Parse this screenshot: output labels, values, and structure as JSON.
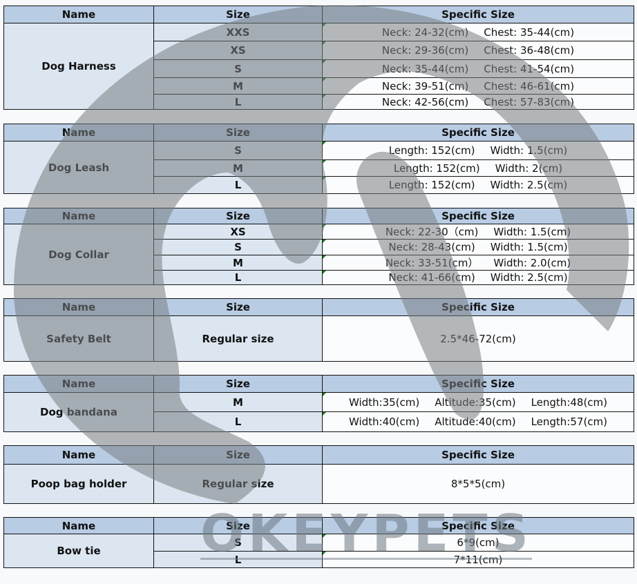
{
  "headers": {
    "name": "Name",
    "size": "Size",
    "specific": "Specific Size"
  },
  "watermark": {
    "logo_text": "OKEYPETS",
    "color": "#808080"
  },
  "colors": {
    "header_fill": "#b8cce4",
    "label_fill": "#dce6f1",
    "border": "#111111"
  },
  "tables": [
    {
      "name": "Dog Harness",
      "rows": [
        {
          "size": "XXS",
          "spec": [
            "Neck: 24-32(cm)",
            "Chest: 35-44(cm)"
          ]
        },
        {
          "size": "XS",
          "spec": [
            "Neck: 29-36(cm)",
            "Chest: 36-48(cm)"
          ]
        },
        {
          "size": "S",
          "spec": [
            "Neck: 35-44(cm)",
            "Chest: 41-54(cm)"
          ]
        },
        {
          "size": "M",
          "spec": [
            "Neck: 39-51(cm)",
            "Chest: 46-61(cm)"
          ]
        },
        {
          "size": "L",
          "spec": [
            "Neck: 42-56(cm)",
            "Chest: 57-83(cm)"
          ]
        }
      ]
    },
    {
      "name": "Dog Leash",
      "rows": [
        {
          "size": "S",
          "spec": [
            "Length: 152(cm)",
            "Width: 1.5(cm)"
          ]
        },
        {
          "size": "M",
          "spec": [
            "Length: 152(cm)",
            "Width: 2(cm)"
          ]
        },
        {
          "size": "L",
          "spec": [
            "Length: 152(cm)",
            "Width: 2.5(cm)"
          ]
        }
      ]
    },
    {
      "name": "Dog Collar",
      "rows": [
        {
          "size": "XS",
          "spec": [
            "Neck: 22-30（cm)",
            "Width: 1.5(cm)"
          ]
        },
        {
          "size": "S",
          "spec": [
            "Neck: 28-43(cm)",
            "Width: 1.5(cm)"
          ]
        },
        {
          "size": "M",
          "spec": [
            "Neck: 33-51(cm）",
            "Width: 2.0(cm)"
          ]
        },
        {
          "size": "L",
          "spec": [
            "Neck: 41-66(cm)",
            "Width: 2.5(cm)"
          ]
        }
      ]
    },
    {
      "name": "Safety Belt",
      "rows": [
        {
          "size": "Regular size",
          "spec": [
            "2.5*46-72(cm)"
          ]
        }
      ]
    },
    {
      "name": "Dog bandana",
      "rows": [
        {
          "size": "M",
          "spec": [
            "Width:35(cm)",
            "Altitude:35(cm)",
            "Length:48(cm)"
          ]
        },
        {
          "size": "L",
          "spec": [
            "Width:40(cm)",
            "Altitude:40(cm)",
            "Length:57(cm)"
          ]
        }
      ]
    },
    {
      "name": "Poop bag holder",
      "rows": [
        {
          "size": "Regular size",
          "spec": [
            "8*5*5(cm)"
          ]
        }
      ]
    },
    {
      "name": "Bow tie",
      "rows": [
        {
          "size": "S",
          "spec": [
            "6*9(cm)"
          ]
        },
        {
          "size": "L",
          "spec": [
            "7*11(cm)"
          ]
        }
      ]
    }
  ]
}
